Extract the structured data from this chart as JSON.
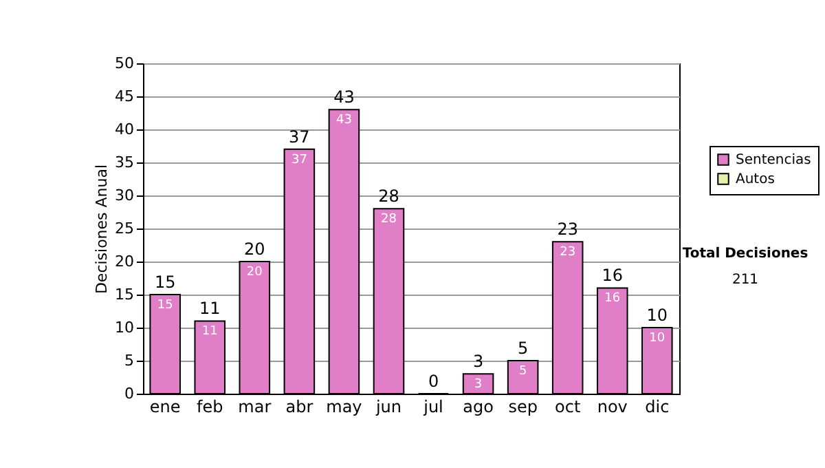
{
  "chart_data": {
    "type": "bar",
    "ylabel": "Decisiones Anual",
    "categories": [
      "ene",
      "feb",
      "mar",
      "abr",
      "may",
      "jun",
      "jul",
      "ago",
      "sep",
      "oct",
      "nov",
      "dic"
    ],
    "series": [
      {
        "name": "Sentencias",
        "color": "#e07fc8",
        "values": [
          15,
          11,
          20,
          37,
          43,
          28,
          0,
          3,
          5,
          23,
          16,
          10
        ],
        "value_labels": [
          "15",
          "11",
          "20",
          "37",
          "43",
          "28",
          null,
          "3",
          "5",
          "23",
          "16",
          "10"
        ]
      },
      {
        "name": "Autos",
        "color": "#e6f0a8",
        "values": [
          null,
          null,
          null,
          null,
          null,
          null,
          null,
          null,
          null,
          null,
          null,
          null
        ]
      }
    ],
    "stacked": true,
    "totals": [
      "15",
      "11",
      "20",
      "37",
      "43",
      "28",
      "0",
      "3",
      "5",
      "23",
      "16",
      "10"
    ],
    "ylim": [
      0,
      50
    ],
    "yticks": [
      0,
      5,
      10,
      15,
      20,
      25,
      30,
      35,
      40,
      45,
      50
    ],
    "grid": "y",
    "legend": "right",
    "annotations": [
      "Total Decisiones",
      "211"
    ]
  }
}
